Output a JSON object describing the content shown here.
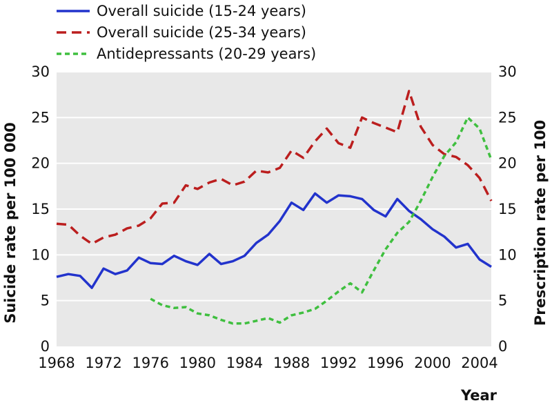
{
  "chart_data": {
    "type": "line",
    "xlabel": "Year",
    "ylabel": "Suicide rate per 100 000",
    "y2label": "Prescription rate per 100",
    "xlim": [
      1968,
      2005
    ],
    "ylim": [
      0,
      30
    ],
    "y2lim": [
      0,
      30
    ],
    "xticks": [
      "1968",
      "1972",
      "1976",
      "1980",
      "1984",
      "1988",
      "1992",
      "1996",
      "2000",
      "2004"
    ],
    "yticks": [
      "0",
      "5",
      "10",
      "15",
      "20",
      "25",
      "30"
    ],
    "grid": "horizontal",
    "background": "#e8e8e8",
    "legend_position": "top-left",
    "series": [
      {
        "name": "Overall suicide (15-24 years)",
        "axis": "left",
        "color": "#2233cc",
        "style": "solid",
        "points": [
          [
            1968,
            7.6
          ],
          [
            1969,
            7.9
          ],
          [
            1970,
            7.7
          ],
          [
            1971,
            6.4
          ],
          [
            1972,
            8.5
          ],
          [
            1973,
            7.9
          ],
          [
            1974,
            8.3
          ],
          [
            1975,
            9.7
          ],
          [
            1976,
            9.1
          ],
          [
            1977,
            9.0
          ],
          [
            1978,
            9.9
          ],
          [
            1979,
            9.3
          ],
          [
            1980,
            8.9
          ],
          [
            1981,
            10.1
          ],
          [
            1982,
            9.0
          ],
          [
            1983,
            9.3
          ],
          [
            1984,
            9.9
          ],
          [
            1985,
            11.3
          ],
          [
            1986,
            12.2
          ],
          [
            1987,
            13.7
          ],
          [
            1988,
            15.7
          ],
          [
            1989,
            14.9
          ],
          [
            1990,
            16.7
          ],
          [
            1991,
            15.7
          ],
          [
            1992,
            16.5
          ],
          [
            1993,
            16.4
          ],
          [
            1994,
            16.1
          ],
          [
            1995,
            14.9
          ],
          [
            1996,
            14.2
          ],
          [
            1997,
            16.1
          ],
          [
            1998,
            14.8
          ],
          [
            1999,
            13.9
          ],
          [
            2000,
            12.8
          ],
          [
            2001,
            12.0
          ],
          [
            2002,
            10.8
          ],
          [
            2003,
            11.2
          ],
          [
            2004,
            9.5
          ],
          [
            2005,
            8.7
          ]
        ]
      },
      {
        "name": "Overall suicide (25-34 years)",
        "axis": "left",
        "color": "#bb1e1e",
        "style": "dashed",
        "points": [
          [
            1968,
            13.4
          ],
          [
            1969,
            13.3
          ],
          [
            1970,
            12.1
          ],
          [
            1971,
            11.2
          ],
          [
            1972,
            11.9
          ],
          [
            1973,
            12.2
          ],
          [
            1974,
            12.9
          ],
          [
            1975,
            13.2
          ],
          [
            1976,
            14.0
          ],
          [
            1977,
            15.6
          ],
          [
            1978,
            15.7
          ],
          [
            1979,
            17.6
          ],
          [
            1980,
            17.2
          ],
          [
            1981,
            17.9
          ],
          [
            1982,
            18.3
          ],
          [
            1983,
            17.6
          ],
          [
            1984,
            18.0
          ],
          [
            1985,
            19.2
          ],
          [
            1986,
            19.0
          ],
          [
            1987,
            19.5
          ],
          [
            1988,
            21.4
          ],
          [
            1989,
            20.6
          ],
          [
            1990,
            22.4
          ],
          [
            1991,
            23.8
          ],
          [
            1992,
            22.2
          ],
          [
            1993,
            21.7
          ],
          [
            1994,
            25.0
          ],
          [
            1995,
            24.4
          ],
          [
            1996,
            23.9
          ],
          [
            1997,
            23.4
          ],
          [
            1998,
            27.9
          ],
          [
            1999,
            24.0
          ],
          [
            2000,
            22.0
          ],
          [
            2001,
            21.0
          ],
          [
            2002,
            20.7
          ],
          [
            2003,
            19.8
          ],
          [
            2004,
            18.4
          ],
          [
            2005,
            15.9
          ]
        ]
      },
      {
        "name": "Antidepressants (20-29 years)",
        "axis": "right",
        "color": "#3fbf3f",
        "style": "dotted",
        "points": [
          [
            1976,
            5.2
          ],
          [
            1977,
            4.5
          ],
          [
            1978,
            4.2
          ],
          [
            1979,
            4.3
          ],
          [
            1980,
            3.6
          ],
          [
            1981,
            3.4
          ],
          [
            1982,
            2.9
          ],
          [
            1983,
            2.5
          ],
          [
            1984,
            2.5
          ],
          [
            1985,
            2.8
          ],
          [
            1986,
            3.1
          ],
          [
            1987,
            2.6
          ],
          [
            1988,
            3.4
          ],
          [
            1989,
            3.7
          ],
          [
            1990,
            4.1
          ],
          [
            1991,
            5.0
          ],
          [
            1992,
            6.0
          ],
          [
            1993,
            6.9
          ],
          [
            1994,
            5.9
          ],
          [
            1995,
            8.3
          ],
          [
            1996,
            10.6
          ],
          [
            1997,
            12.4
          ],
          [
            1998,
            13.6
          ],
          [
            1999,
            15.9
          ],
          [
            2000,
            18.5
          ],
          [
            2001,
            20.8
          ],
          [
            2002,
            22.3
          ],
          [
            2003,
            25.0
          ],
          [
            2004,
            23.8
          ],
          [
            2005,
            20.4
          ]
        ]
      }
    ]
  }
}
